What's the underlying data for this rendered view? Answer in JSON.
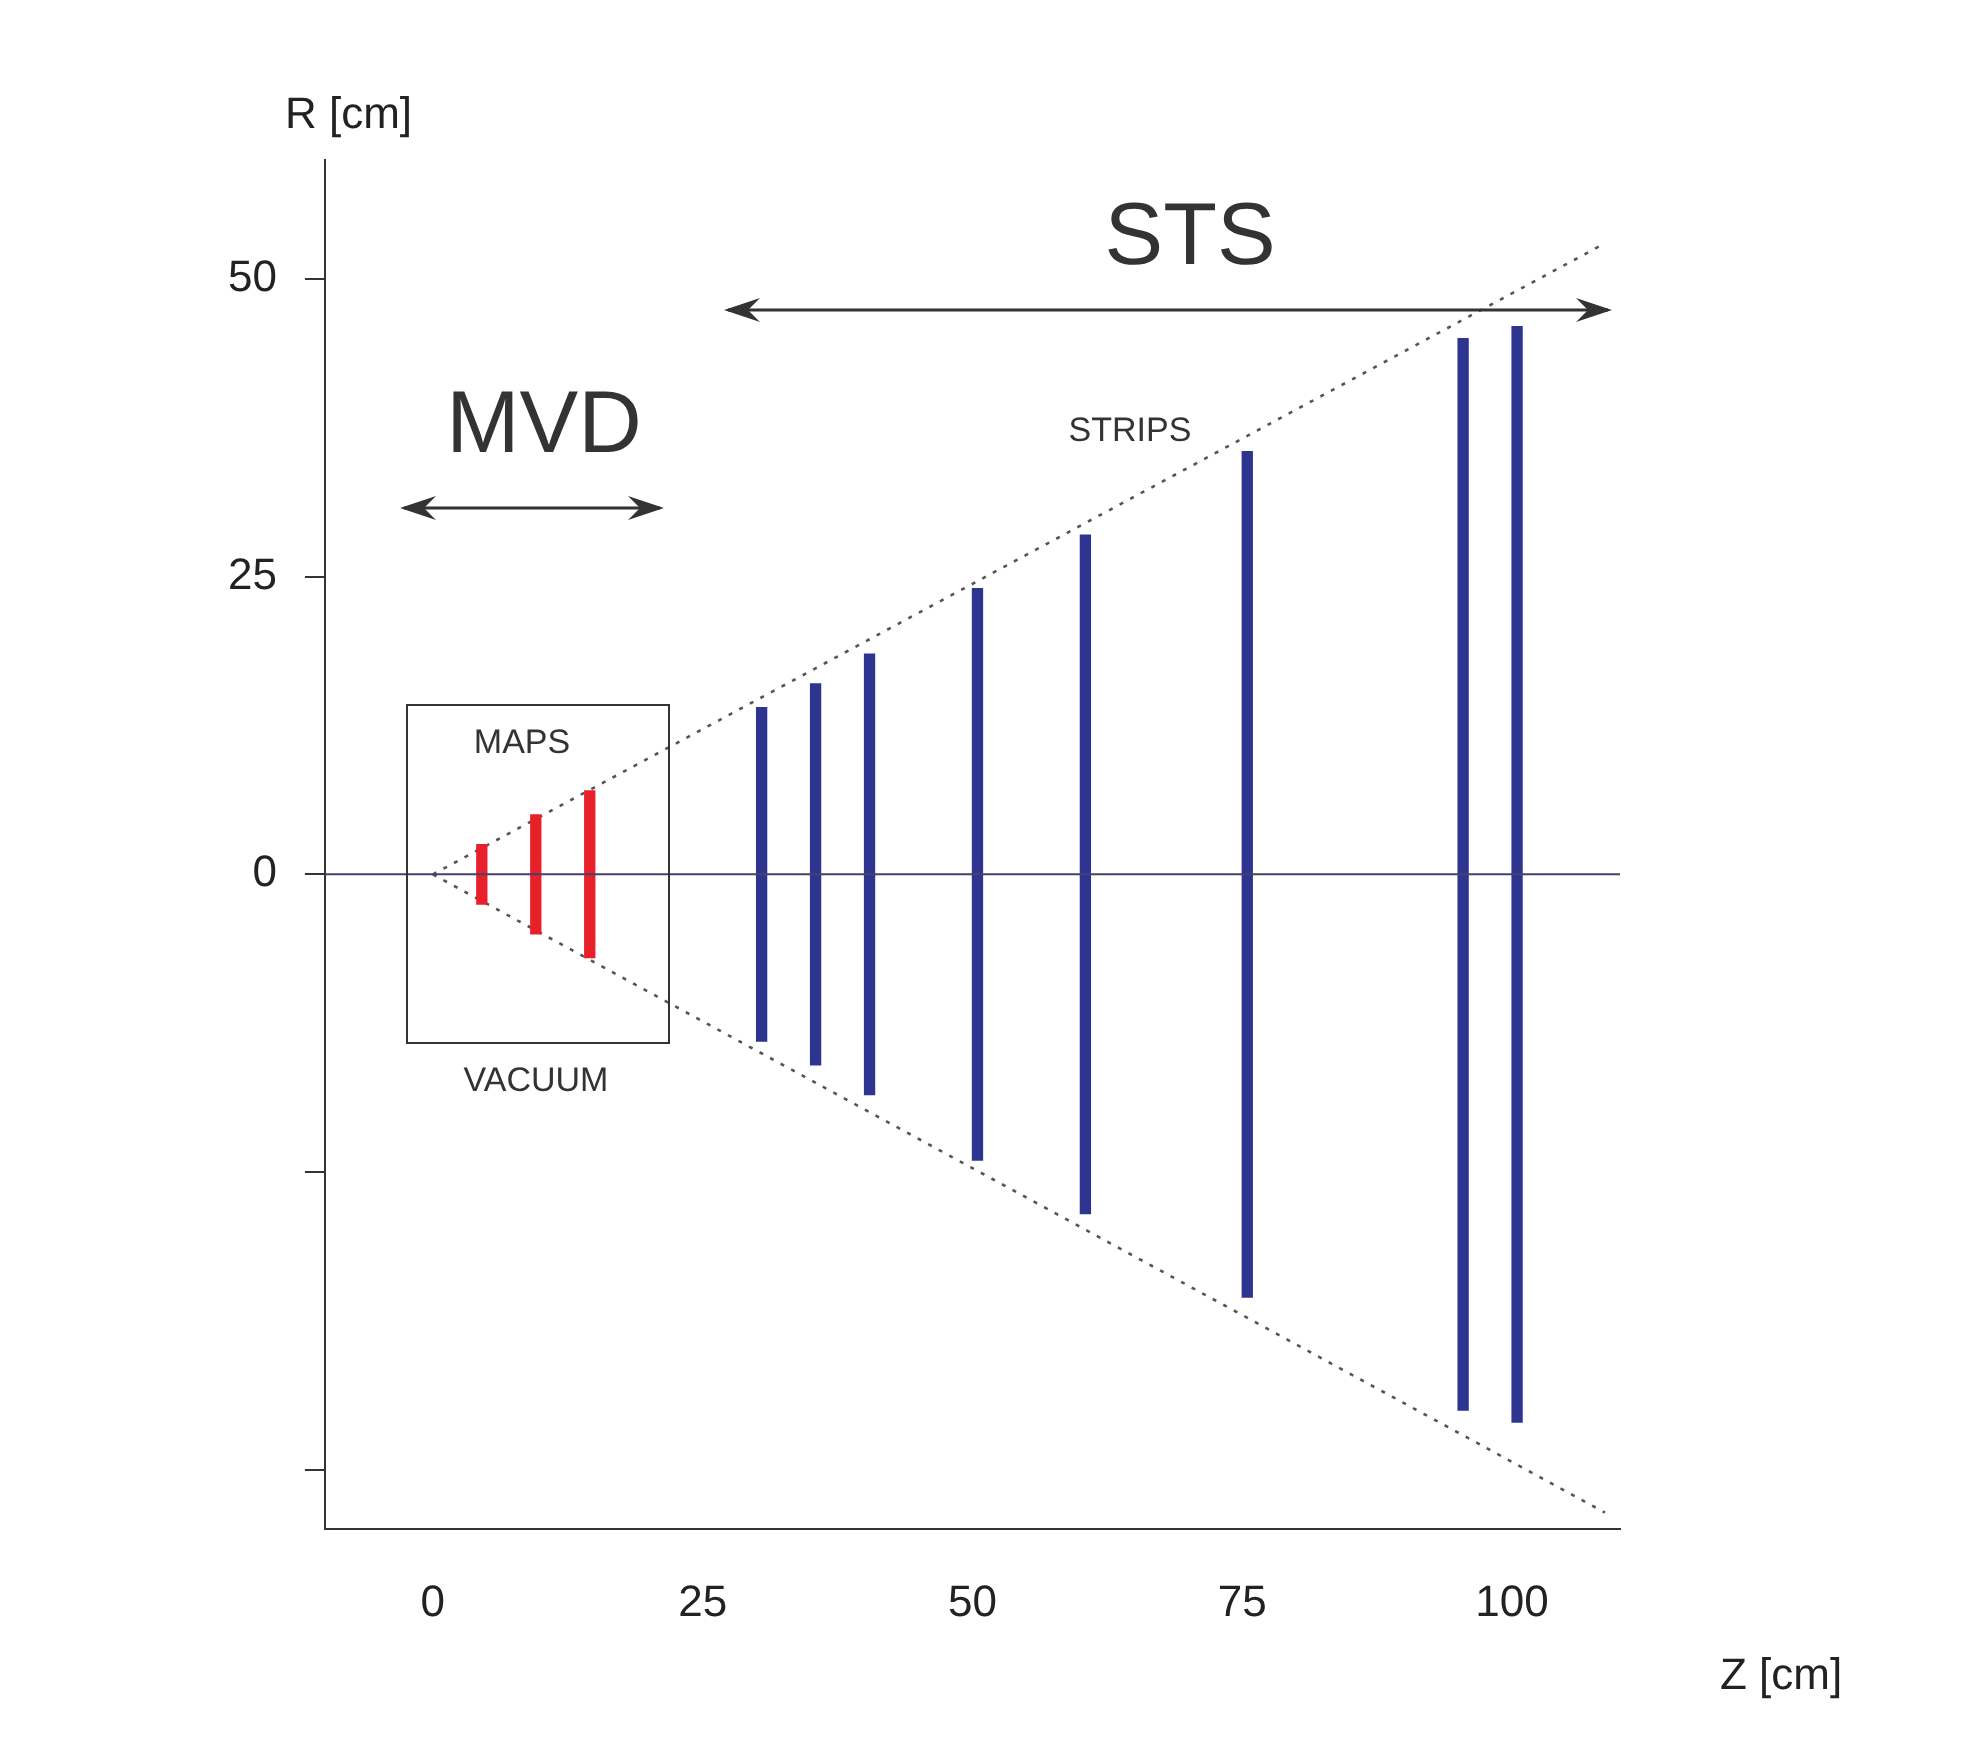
{
  "chart_data": {
    "type": "bar",
    "xlabel": "Z [cm]",
    "ylabel": "R [cm]",
    "xlim": [
      -10,
      110
    ],
    "xticks": [
      0,
      25,
      50,
      75,
      100
    ],
    "ylim": [
      -55,
      60
    ],
    "yticks": [
      {
        "value": -50,
        "label": null
      },
      {
        "value": -25,
        "label": null
      },
      0,
      25,
      50
    ],
    "grid": false,
    "legend": false,
    "series": [
      {
        "color": "#e8202a",
        "x": [
          5,
          10,
          15
        ],
        "base": [
          -2.5,
          -5,
          -7
        ],
        "values": [
          5,
          10,
          14
        ]
      },
      {
        "color": "#2e3590",
        "x": [
          30,
          35,
          40,
          50,
          60,
          75,
          95,
          100
        ],
        "base": [
          -14,
          -16,
          -18.5,
          -24,
          -28.5,
          -35.5,
          -45,
          -46
        ],
        "values": [
          28,
          32,
          37,
          48,
          57,
          71,
          90,
          92
        ]
      },
      {
        "type": "line",
        "color": "#555555",
        "line_style": "dotted",
        "x": [
          0,
          108.6
        ],
        "values": [
          0,
          53
        ]
      },
      {
        "type": "line",
        "color": "#555555",
        "line_style": "dotted",
        "x": [
          0,
          108.6
        ],
        "values": [
          0,
          -53.6
        ]
      }
    ],
    "ref_lines": [
      {
        "axis": "y",
        "value": 0,
        "color": "#4a3f6b"
      }
    ],
    "annotations": [
      "MVD",
      "STS",
      "STRIPS",
      "MAPS",
      "VACUUM"
    ]
  }
}
